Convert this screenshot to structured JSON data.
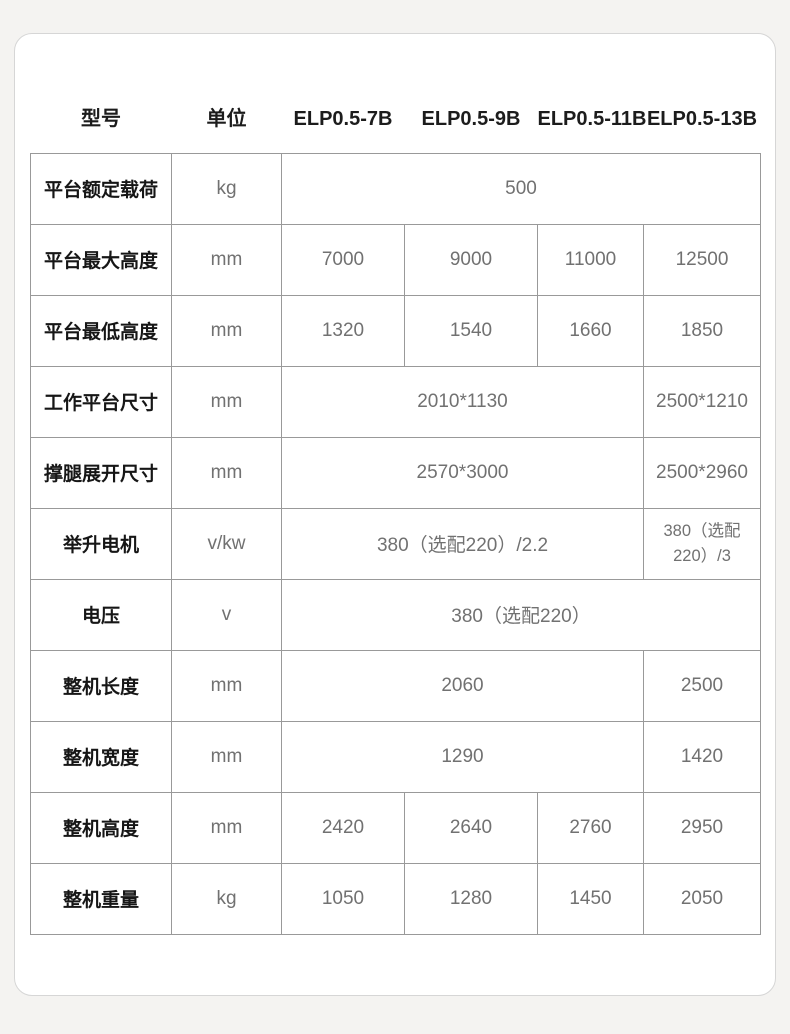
{
  "colors": {
    "page_background": "#f4f3f1",
    "card_background": "#ffffff",
    "card_border": "#d6d6d6",
    "table_border": "#999999",
    "label_text": "#161616",
    "value_text": "#717171"
  },
  "header": {
    "columns": [
      "型号",
      "单位",
      "ELP0.5-7B",
      "ELP0.5-9B",
      "ELP0.5-11B",
      "ELP0.5-13B"
    ]
  },
  "table": {
    "rows": [
      {
        "label": "平台额定载荷",
        "unit": "kg",
        "values": [
          {
            "text": "500",
            "span": 4
          }
        ]
      },
      {
        "label": "平台最大高度",
        "unit": "mm",
        "values": [
          {
            "text": "7000",
            "span": 1
          },
          {
            "text": "9000",
            "span": 1
          },
          {
            "text": "11000",
            "span": 1
          },
          {
            "text": "12500",
            "span": 1
          }
        ]
      },
      {
        "label": "平台最低高度",
        "unit": "mm",
        "values": [
          {
            "text": "1320",
            "span": 1
          },
          {
            "text": "1540",
            "span": 1
          },
          {
            "text": "1660",
            "span": 1
          },
          {
            "text": "1850",
            "span": 1
          }
        ]
      },
      {
        "label": "工作平台尺寸",
        "unit": "mm",
        "values": [
          {
            "text": "2010*1130",
            "span": 3
          },
          {
            "text": "2500*1210",
            "span": 1
          }
        ]
      },
      {
        "label": "撑腿展开尺寸",
        "unit": "mm",
        "values": [
          {
            "text": "2570*3000",
            "span": 3
          },
          {
            "text": "2500*2960",
            "span": 1
          }
        ]
      },
      {
        "label": "举升电机",
        "unit": "v/kw",
        "values": [
          {
            "text": "380（选配220）/2.2",
            "span": 3
          },
          {
            "text": "380（选配220）/3",
            "span": 1
          }
        ]
      },
      {
        "label": "电压",
        "unit": "v",
        "values": [
          {
            "text": "380（选配220）",
            "span": 4
          }
        ]
      },
      {
        "label": "整机长度",
        "unit": "mm",
        "values": [
          {
            "text": "2060",
            "span": 3
          },
          {
            "text": "2500",
            "span": 1
          }
        ]
      },
      {
        "label": "整机宽度",
        "unit": "mm",
        "values": [
          {
            "text": "1290",
            "span": 3
          },
          {
            "text": "1420",
            "span": 1
          }
        ]
      },
      {
        "label": "整机高度",
        "unit": "mm",
        "values": [
          {
            "text": "2420",
            "span": 1
          },
          {
            "text": "2640",
            "span": 1
          },
          {
            "text": "2760",
            "span": 1
          },
          {
            "text": "2950",
            "span": 1
          }
        ]
      },
      {
        "label": "整机重量",
        "unit": "kg",
        "values": [
          {
            "text": "1050",
            "span": 1
          },
          {
            "text": "1280",
            "span": 1
          },
          {
            "text": "1450",
            "span": 1
          },
          {
            "text": "2050",
            "span": 1
          }
        ]
      }
    ]
  }
}
